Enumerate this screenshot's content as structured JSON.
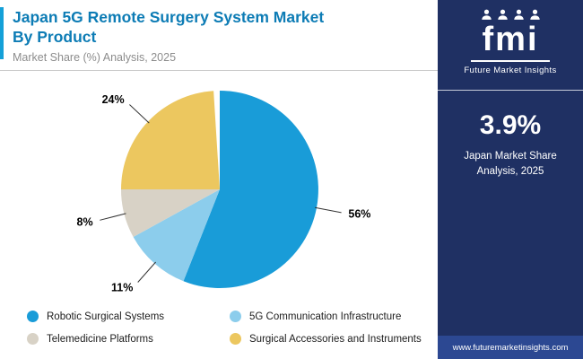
{
  "header": {
    "title_lines": [
      "Japan 5G Remote Surgery System Market",
      "By Product"
    ],
    "subtitle": "Market Share (%) Analysis, 2025",
    "accent_color": "#14a0d8",
    "title_color": "#0d7cb5"
  },
  "sidebar": {
    "logo_text": "fmi",
    "logo_subtext": "Future Market Insights",
    "logo_icons": [
      "person-icon",
      "person-icon",
      "person-icon",
      "person-icon"
    ],
    "stat_value": "3.9%",
    "stat_label": "Japan Market Share Analysis, 2025",
    "footer_link": "www.futuremarketinsights.com",
    "bg_color": "#1f3063",
    "footer_bg_color": "#2c4892"
  },
  "chart_data": {
    "type": "pie",
    "title": "Japan 5G Remote Surgery System Market By Product",
    "subtitle": "Market Share (%) Analysis, 2025",
    "unit": "%",
    "direction": "clockwise",
    "start_angle_deg": 0,
    "legend_position": "bottom",
    "slices": [
      {
        "label": "Robotic Surgical Systems",
        "value": 56,
        "color": "#199cd8"
      },
      {
        "label": "5G Communication Infrastructure",
        "value": 11,
        "color": "#8ccdec"
      },
      {
        "label": "Telemedicine Platforms",
        "value": 8,
        "color": "#d8d2c6"
      },
      {
        "label": "Surgical Accessories and Instruments",
        "value": 24,
        "color": "#ecc75f"
      }
    ]
  }
}
